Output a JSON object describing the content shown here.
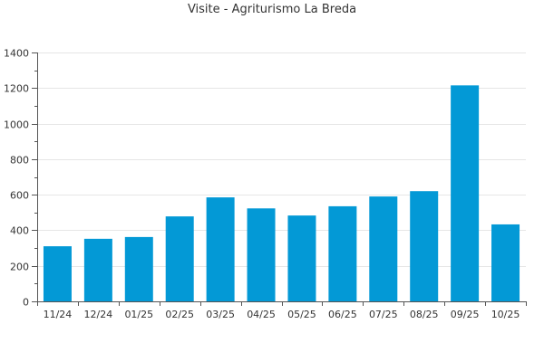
{
  "chart_data": {
    "type": "bar",
    "title": "Visite - Agriturismo La Breda",
    "xlabel": "",
    "ylabel": "",
    "categories": [
      "11/24",
      "12/24",
      "01/25",
      "02/25",
      "03/25",
      "04/25",
      "05/25",
      "06/25",
      "07/25",
      "08/25",
      "09/25",
      "10/25"
    ],
    "values": [
      310,
      352,
      362,
      478,
      585,
      523,
      483,
      535,
      590,
      620,
      1215,
      433
    ],
    "ylim": [
      0,
      1400
    ],
    "yticks": [
      0,
      200,
      400,
      600,
      800,
      1000,
      1200,
      1400
    ],
    "grid": true,
    "legend": "none",
    "colors": {
      "bar": "#0399d6",
      "grid": "#e6e6e6",
      "axis": "#555555",
      "text": "#333333"
    }
  }
}
